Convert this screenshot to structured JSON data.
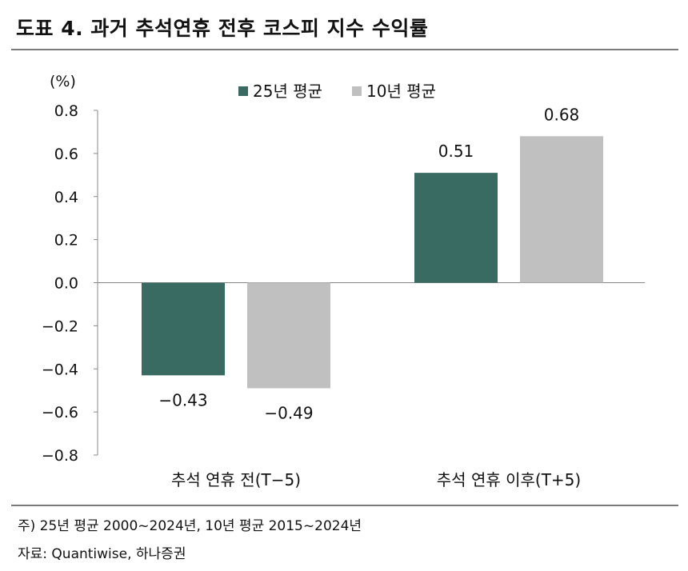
{
  "title": "도표 4. 과거 추석연휴 전후 코스피 지수 수익률",
  "footnote": "주) 25년 평균 2000~2024년, 10년 평균 2015~2024년",
  "source": "자료: Quantiwise, 하나증권",
  "chart_data": {
    "type": "bar",
    "ylabel": "(%)",
    "ylim": [
      -0.8,
      0.8
    ],
    "yticks": [
      "0.8",
      "0.6",
      "0.4",
      "0.2",
      "0.0",
      "−0.2",
      "−0.4",
      "−0.6",
      "−0.8"
    ],
    "yticks_values": [
      0.8,
      0.6,
      0.4,
      0.2,
      0.0,
      -0.2,
      -0.4,
      -0.6,
      -0.8
    ],
    "categories": [
      "추석 연휴 전(T−5)",
      "추석 연휴 이후(T+5)"
    ],
    "series": [
      {
        "name": "25년 평균",
        "color": "#3a6b62",
        "values": [
          -0.43,
          0.51
        ],
        "labels": [
          "−0.43",
          "0.51"
        ]
      },
      {
        "name": "10년 평균",
        "color": "#c0c0c0",
        "values": [
          -0.49,
          0.68
        ],
        "labels": [
          "−0.49",
          "0.68"
        ]
      }
    ],
    "legend_position": "top-center",
    "grid": false
  }
}
